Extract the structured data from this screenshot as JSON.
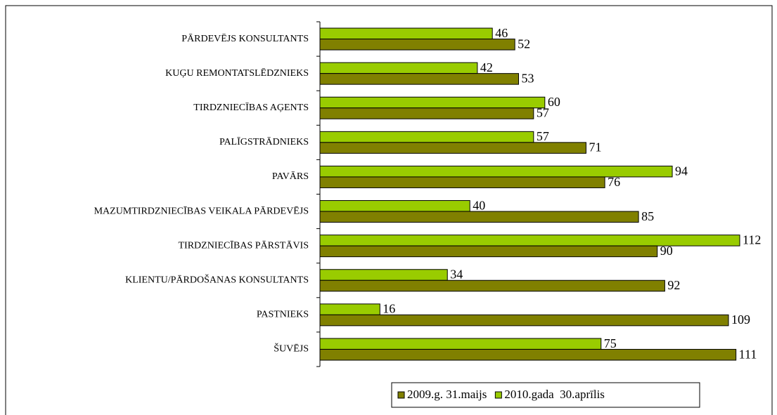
{
  "chart_data": {
    "type": "bar",
    "orientation": "horizontal",
    "categories": [
      "PĀRDEVĒJS KONSULTANTS",
      "KUĢU REMONTATSLĒDZNIEKS",
      "TIRDZNIECĪBAS AĢENTS",
      "PALĪGSTRĀDNIEKS",
      "PAVĀRS",
      "MAZUMTIRDZNIECĪBAS VEIKALA PĀRDEVĒJS",
      "TIRDZNIECĪBAS PĀRSTĀVIS",
      "KLIENTU/PĀRDOŠANAS KONSULTANTS",
      "PASTNIEKS",
      "ŠUVĒJS"
    ],
    "series": [
      {
        "name": "2009.g. 31.maijs",
        "color": "#808000",
        "values": [
          52,
          53,
          57,
          71,
          76,
          85,
          90,
          92,
          109,
          111
        ]
      },
      {
        "name": "2010.gada  30.aprīlis",
        "color": "#99cc00",
        "values": [
          46,
          42,
          60,
          57,
          94,
          40,
          112,
          34,
          16,
          75
        ]
      }
    ],
    "xlim": [
      0,
      112
    ],
    "legend": "bottom"
  }
}
